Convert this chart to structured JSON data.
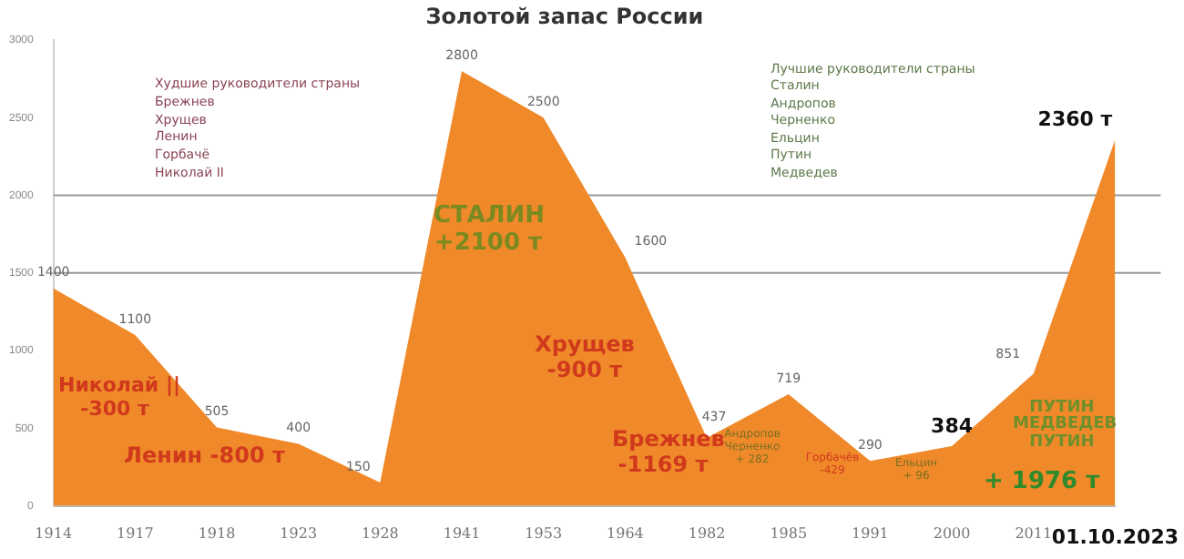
{
  "chart_data": {
    "type": "area",
    "title": "Золотой запас России",
    "categories": [
      "1914",
      "1917",
      "1918",
      "1923",
      "1928",
      "1941",
      "1953",
      "1964",
      "1982",
      "1985",
      "1991",
      "2000",
      "2011",
      "01.10.2023"
    ],
    "values": [
      1400,
      1100,
      505,
      400,
      150,
      2800,
      2500,
      1600,
      437,
      719,
      290,
      384,
      851,
      2360
    ],
    "value_labels": [
      "1400",
      "1100",
      "505",
      "400",
      "150",
      "2800",
      "2500",
      "1600",
      "437",
      "719",
      "290",
      "384",
      "851",
      "2360 т"
    ],
    "color": "#f0892a",
    "ylim": [
      0,
      3000
    ],
    "yticks": [
      0,
      500,
      1000,
      1500,
      2000,
      2500,
      3000
    ],
    "ref_lines": [
      {
        "axis": "y",
        "value": 1500,
        "color": "#9a9a9a"
      },
      {
        "axis": "y",
        "value": 2000,
        "color": "#9a9a9a"
      }
    ],
    "annotations": [
      "Худшие руководители страны\nБрежнев\nХрущев\nЛенин\nГорбачё\nНиколай II",
      "Лучшие руководители страны\nСталин\nАндропов\nЧерненко\nЕльцин\nПутин\nМедведев",
      "СТАЛИН\n+2100 т",
      "Николай ||\n-300 т",
      "Ленин -800 т",
      "Хрущев\n-900 т",
      "Брежнев\n-1169 т",
      "Андропов\nЧерненко\n+ 282",
      "Горбачёв\n-429",
      "Ельцин\n+ 96",
      "ПУТИН\nМЕДВЕДЕВ\nПУТИН",
      "+ 1976 т"
    ]
  }
}
